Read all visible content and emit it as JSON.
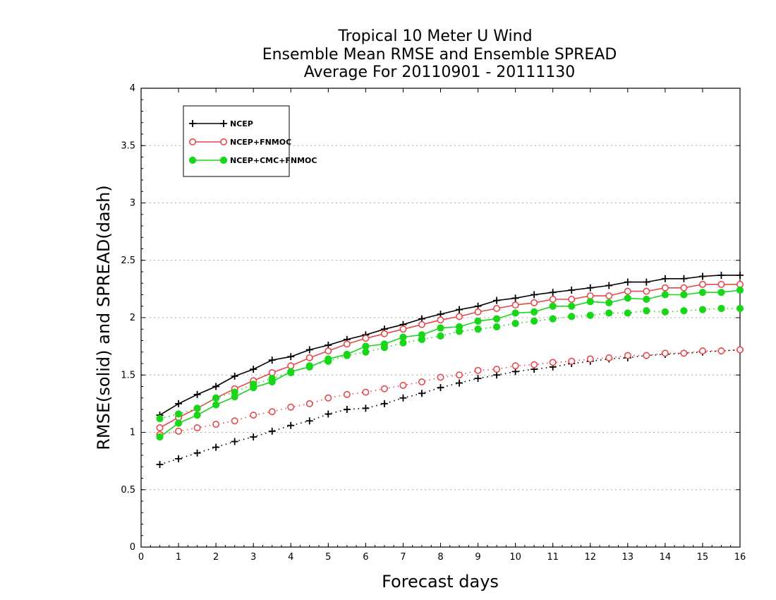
{
  "chart_data": {
    "type": "line",
    "title_lines": [
      "Tropical 10 Meter U Wind",
      "Ensemble Mean RMSE and Ensemble SPREAD",
      "Average For 20110901 - 20111130"
    ],
    "xlabel": "Forecast days",
    "ylabel": "RMSE(solid) and SPREAD(dash)",
    "xlim": [
      0,
      16
    ],
    "ylim": [
      0,
      4
    ],
    "xticks": [
      "0",
      "1",
      "2",
      "3",
      "4",
      "5",
      "6",
      "7",
      "8",
      "9",
      "10",
      "11",
      "12",
      "13",
      "14",
      "15",
      "16"
    ],
    "yticks": [
      "0",
      "0.5",
      "1",
      "1.5",
      "2",
      "2.5",
      "3",
      "3.5",
      "4"
    ],
    "grid": "horizontal dotted",
    "legend_position": "top-left",
    "x": [
      0.5,
      1,
      1.5,
      2,
      2.5,
      3,
      3.5,
      4,
      4.5,
      5,
      5.5,
      6,
      6.5,
      7,
      7.5,
      8,
      8.5,
      9,
      9.5,
      10,
      10.5,
      11,
      11.5,
      12,
      12.5,
      13,
      13.5,
      14,
      14.5,
      15,
      15.5,
      16
    ],
    "series": [
      {
        "name": "NCEP",
        "color": "#000000",
        "marker": "plus",
        "rmse": [
          1.15,
          1.25,
          1.33,
          1.4,
          1.49,
          1.55,
          1.63,
          1.66,
          1.72,
          1.76,
          1.81,
          1.85,
          1.9,
          1.94,
          1.99,
          2.03,
          2.07,
          2.1,
          2.15,
          2.17,
          2.2,
          2.22,
          2.24,
          2.26,
          2.28,
          2.31,
          2.31,
          2.34,
          2.34,
          2.36,
          2.37,
          2.37
        ],
        "spread": [
          0.72,
          0.77,
          0.82,
          0.87,
          0.92,
          0.96,
          1.01,
          1.06,
          1.1,
          1.16,
          1.2,
          1.21,
          1.25,
          1.3,
          1.34,
          1.39,
          1.43,
          1.47,
          1.5,
          1.53,
          1.55,
          1.57,
          1.6,
          1.62,
          1.64,
          1.65,
          1.67,
          1.68,
          1.69,
          1.7,
          1.71,
          1.72
        ]
      },
      {
        "name": "NCEP+FNMOC",
        "color": "#e8484b",
        "marker": "open-circle",
        "rmse": [
          1.04,
          1.13,
          1.21,
          1.3,
          1.38,
          1.45,
          1.52,
          1.58,
          1.65,
          1.71,
          1.77,
          1.82,
          1.86,
          1.9,
          1.94,
          1.98,
          2.01,
          2.05,
          2.08,
          2.11,
          2.13,
          2.16,
          2.16,
          2.19,
          2.19,
          2.23,
          2.23,
          2.26,
          2.26,
          2.29,
          2.29,
          2.29
        ],
        "spread": [
          0.98,
          1.01,
          1.04,
          1.07,
          1.1,
          1.15,
          1.18,
          1.22,
          1.25,
          1.3,
          1.33,
          1.35,
          1.38,
          1.41,
          1.44,
          1.48,
          1.5,
          1.54,
          1.55,
          1.58,
          1.59,
          1.61,
          1.62,
          1.64,
          1.65,
          1.67,
          1.67,
          1.69,
          1.69,
          1.71,
          1.71,
          1.72
        ]
      },
      {
        "name": "NCEP+CMC+FNMOC",
        "color": "#19d619",
        "marker": "filled-circle",
        "rmse": [
          0.96,
          1.08,
          1.15,
          1.24,
          1.31,
          1.39,
          1.44,
          1.53,
          1.57,
          1.64,
          1.68,
          1.75,
          1.77,
          1.83,
          1.85,
          1.91,
          1.92,
          1.97,
          1.99,
          2.04,
          2.05,
          2.1,
          2.1,
          2.14,
          2.13,
          2.17,
          2.16,
          2.2,
          2.2,
          2.22,
          2.22,
          2.24
        ],
        "spread": [
          1.12,
          1.16,
          1.21,
          1.3,
          1.35,
          1.42,
          1.47,
          1.52,
          1.58,
          1.62,
          1.67,
          1.7,
          1.74,
          1.78,
          1.81,
          1.84,
          1.88,
          1.9,
          1.92,
          1.95,
          1.97,
          1.99,
          2.01,
          2.02,
          2.04,
          2.04,
          2.06,
          2.05,
          2.06,
          2.07,
          2.08,
          2.08
        ]
      }
    ]
  }
}
